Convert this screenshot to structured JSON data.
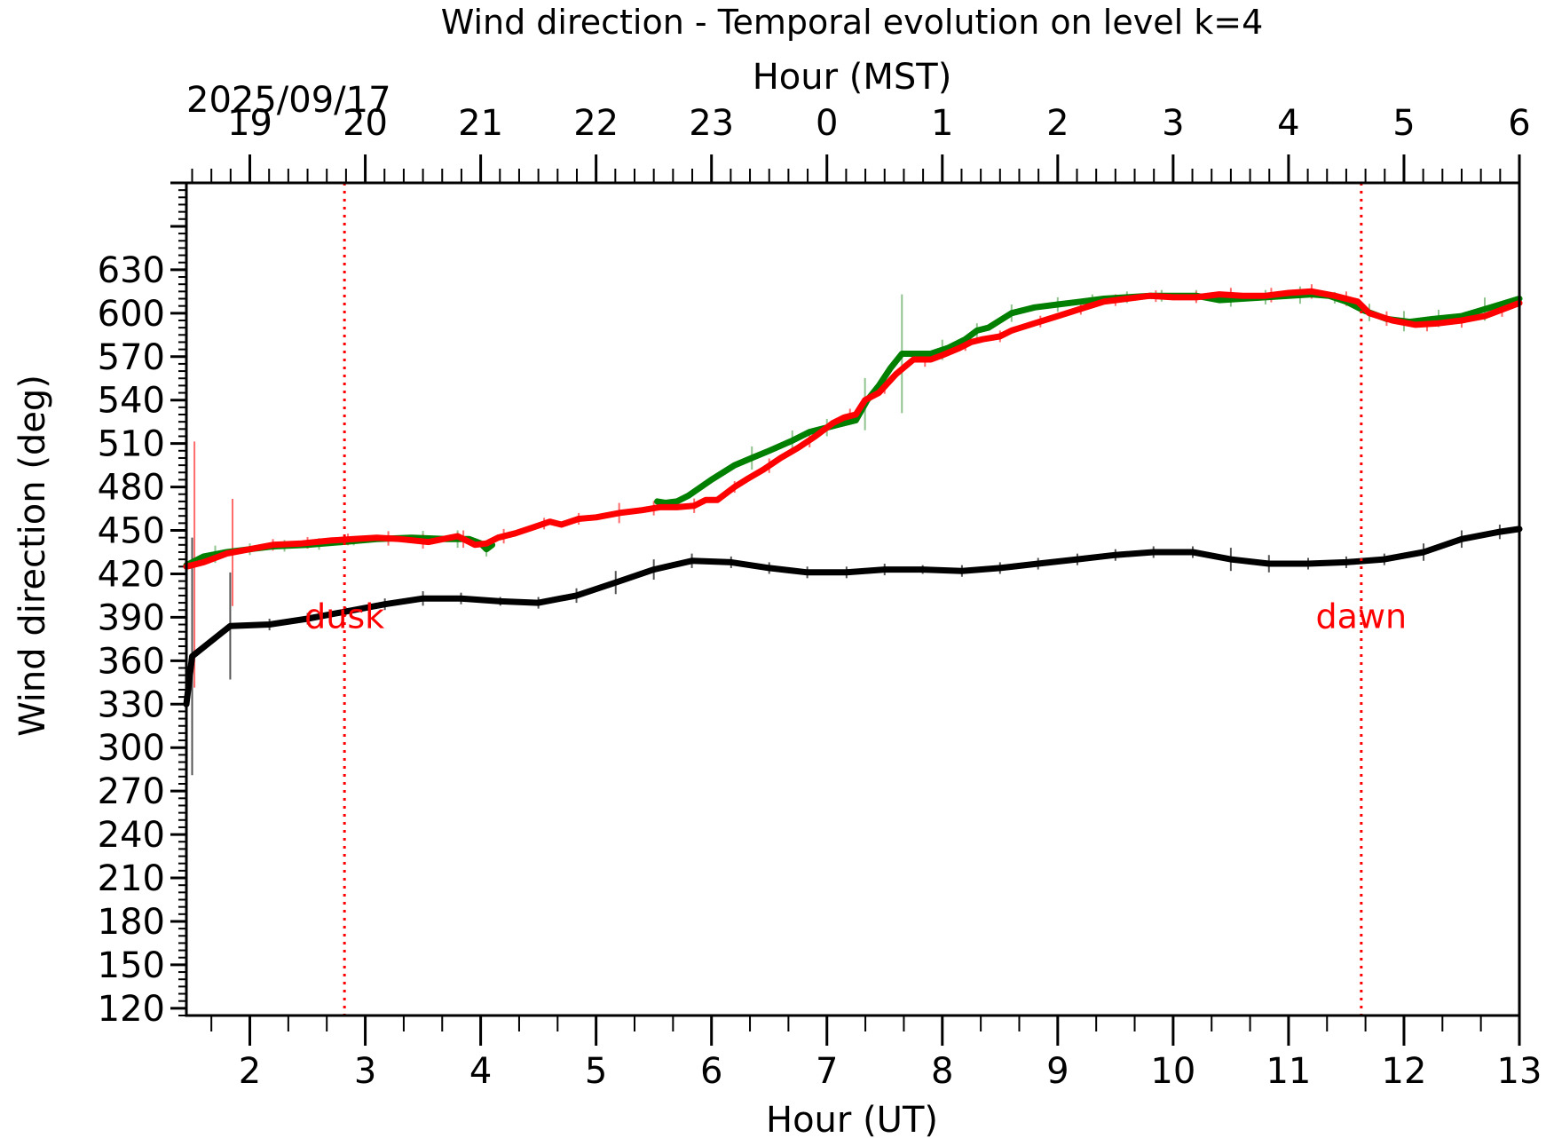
{
  "chart_data": {
    "type": "line",
    "title": "Wind direction - Temporal evolution on level k=4",
    "xlabel": "Hour (UT)",
    "top_xlabel": "Hour (MST)",
    "ylabel": "Wind direction (deg)",
    "date_label": "2025/09/17",
    "xlim": [
      1.45,
      13.0
    ],
    "ylim": [
      115,
      690
    ],
    "x_ticks": [
      2,
      3,
      4,
      5,
      6,
      7,
      8,
      9,
      10,
      11,
      12,
      13
    ],
    "x_tick_labels": [
      "2",
      "3",
      "4",
      "5",
      "6",
      "7",
      "8",
      "9",
      "10",
      "11",
      "12",
      "13"
    ],
    "top_ticks_ut": [
      2,
      3,
      4,
      5,
      6,
      7,
      8,
      9,
      10,
      11,
      12,
      13
    ],
    "top_tick_labels": [
      "19",
      "20",
      "21",
      "22",
      "23",
      "0",
      "1",
      "2",
      "3",
      "4",
      "5",
      "6"
    ],
    "y_ticks": [
      120,
      150,
      180,
      210,
      240,
      270,
      300,
      330,
      360,
      390,
      420,
      450,
      480,
      510,
      540,
      570,
      600,
      630
    ],
    "y_tick_labels": [
      "120",
      "150",
      "180",
      "210",
      "240",
      "270",
      "300",
      "330",
      "360",
      "390",
      "420",
      "450",
      "480",
      "510",
      "540",
      "570",
      "600",
      "630"
    ],
    "grid": false,
    "annotations": [
      {
        "text": "dusk",
        "x": 2.82,
        "color": "#ff0000"
      },
      {
        "text": "dawn",
        "x": 11.63,
        "color": "#ff0000"
      }
    ],
    "vlines": [
      {
        "x": 2.82,
        "color": "#ff0000",
        "style": "dotted"
      },
      {
        "x": 11.63,
        "color": "#ff0000",
        "style": "dotted"
      }
    ],
    "series": [
      {
        "color": "#000000",
        "x": [
          1.45,
          1.5,
          1.83,
          2.17,
          2.5,
          2.83,
          3.17,
          3.5,
          3.83,
          4.17,
          4.5,
          4.83,
          5.17,
          5.5,
          5.83,
          6.17,
          6.5,
          6.83,
          7.17,
          7.5,
          7.83,
          8.17,
          8.5,
          8.83,
          9.17,
          9.5,
          9.83,
          10.17,
          10.5,
          10.83,
          11.17,
          11.5,
          11.83,
          12.17,
          12.5,
          12.83,
          13.0
        ],
        "y": [
          330,
          363,
          384,
          385,
          389,
          394,
          399,
          403,
          403,
          401,
          400,
          405,
          414,
          423,
          429,
          428,
          424,
          421,
          421,
          423,
          423,
          422,
          424,
          427,
          430,
          433,
          435,
          435,
          430,
          427,
          427,
          428,
          430,
          435,
          444,
          449,
          451
        ],
        "errors": {
          "x": [
            1.5,
            1.83,
            2.17,
            2.5,
            2.83,
            3.17,
            3.5,
            3.83,
            4.17,
            4.5,
            4.83,
            5.17,
            5.5,
            5.83,
            6.17,
            6.5,
            6.83,
            7.17,
            7.5,
            7.83,
            8.17,
            8.5,
            8.83,
            9.17,
            9.5,
            9.83,
            10.17,
            10.5,
            10.83,
            11.17,
            11.5,
            11.83,
            12.17,
            12.5,
            12.83
          ],
          "half": [
            82,
            37,
            4,
            4,
            3,
            4,
            5,
            4,
            3,
            4,
            5,
            8,
            7,
            5,
            4,
            4,
            4,
            4,
            4,
            3,
            4,
            4,
            4,
            4,
            4,
            4,
            4,
            8,
            6,
            4,
            4,
            4,
            6,
            6,
            5
          ]
        }
      },
      {
        "color": "#007f00",
        "x": [
          1.45,
          1.6,
          1.8,
          2.0,
          2.2,
          2.5,
          2.8,
          3.1,
          3.4,
          3.7,
          3.9,
          4.0,
          4.05,
          4.1
        ],
        "y": [
          426,
          432,
          435,
          437,
          439,
          440,
          442,
          444,
          445,
          444,
          444,
          441,
          437,
          440
        ],
        "errors": {
          "x": [
            1.7,
            2.0,
            2.3,
            2.6,
            2.9,
            3.2,
            3.5,
            3.8,
            4.05
          ],
          "half": [
            6,
            4,
            4,
            4,
            3,
            4,
            5,
            6,
            5
          ]
        }
      },
      {
        "color": "#007f00",
        "x": [
          5.53,
          5.6,
          5.7,
          5.8,
          6.0,
          6.2,
          6.35,
          6.5,
          6.7,
          6.85,
          7.0,
          7.1,
          7.25,
          7.35,
          7.45,
          7.55,
          7.65,
          7.75,
          7.9,
          8.05,
          8.2,
          8.3,
          8.4,
          8.6,
          8.8,
          9.0,
          9.2,
          9.4,
          9.6,
          9.8,
          10.0,
          10.2,
          10.4,
          10.6,
          10.8,
          11.0,
          11.2,
          11.35,
          11.5,
          11.65,
          11.85,
          12.05,
          12.25,
          12.5,
          12.75,
          13.0
        ],
        "y": [
          470,
          469,
          470,
          474,
          485,
          495,
          500,
          505,
          512,
          518,
          521,
          523,
          526,
          540,
          550,
          562,
          572,
          572,
          572,
          576,
          582,
          588,
          590,
          600,
          604,
          606,
          608,
          610,
          611,
          612,
          612,
          612,
          609,
          610,
          611,
          612,
          613,
          612,
          608,
          602,
          596,
          594,
          596,
          598,
          604,
          610
        ],
        "errors": {
          "x": [
            6.35,
            6.7,
            7.0,
            7.33,
            7.65,
            8.0,
            8.3,
            8.6,
            9.0,
            9.3,
            9.6,
            9.9,
            10.2,
            10.5,
            10.8,
            11.1,
            11.4,
            11.7,
            12.0,
            12.3,
            12.7
          ],
          "half": [
            8,
            7,
            6,
            18,
            41,
            7,
            5,
            6,
            5,
            4,
            4,
            4,
            4,
            5,
            5,
            6,
            4,
            6,
            7,
            6,
            8
          ]
        }
      },
      {
        "color": "#ff0000",
        "x": [
          1.45,
          1.6,
          1.8,
          2.0,
          2.2,
          2.45,
          2.7,
          2.9,
          3.1,
          3.3,
          3.55,
          3.8,
          3.95,
          4.05,
          4.15,
          4.3,
          4.45,
          4.6,
          4.7,
          4.85,
          5.0,
          5.2,
          5.4,
          5.55,
          5.7,
          5.85,
          5.95,
          6.05,
          6.2,
          6.3,
          6.45,
          6.6,
          6.75,
          6.9,
          7.05,
          7.15,
          7.25,
          7.33,
          7.45,
          7.6,
          7.75,
          7.9,
          8.0,
          8.15,
          8.25,
          8.35,
          8.5,
          8.6,
          8.8,
          9.0,
          9.2,
          9.4,
          9.6,
          9.8,
          10.0,
          10.2,
          10.4,
          10.6,
          10.8,
          11.0,
          11.2,
          11.4,
          11.6,
          11.7,
          11.9,
          12.1,
          12.3,
          12.5,
          12.7,
          12.9,
          13.0
        ],
        "y": [
          425,
          428,
          434,
          437,
          440,
          441,
          443,
          444,
          445,
          444,
          442,
          446,
          440,
          441,
          445,
          448,
          452,
          456,
          454,
          458,
          459,
          462,
          464,
          466,
          466,
          467,
          471,
          471,
          480,
          485,
          492,
          500,
          507,
          515,
          524,
          528,
          530,
          540,
          545,
          558,
          568,
          568,
          571,
          576,
          580,
          582,
          584,
          588,
          593,
          598,
          603,
          608,
          610,
          612,
          611,
          611,
          613,
          612,
          612,
          614,
          615,
          612,
          608,
          600,
          595,
          592,
          593,
          595,
          598,
          604,
          607
        ],
        "errors": {
          "x": [
            1.52,
            1.85,
            2.2,
            2.5,
            2.85,
            3.2,
            3.5,
            3.85,
            4.2,
            4.55,
            4.85,
            5.2,
            5.5,
            5.85,
            6.2,
            6.5,
            6.85,
            7.2,
            7.5,
            7.85,
            8.2,
            8.5,
            8.85,
            9.2,
            9.5,
            9.85,
            10.2,
            10.5,
            10.85,
            11.2,
            11.5,
            11.85,
            12.2,
            12.5,
            12.85
          ],
          "half": [
            85,
            37,
            4,
            4,
            4,
            5,
            5,
            6,
            5,
            4,
            4,
            7,
            5,
            5,
            4,
            5,
            5,
            5,
            5,
            5,
            4,
            4,
            4,
            4,
            4,
            4,
            4,
            5,
            5,
            5,
            5,
            5,
            5,
            5,
            5
          ]
        }
      }
    ]
  }
}
